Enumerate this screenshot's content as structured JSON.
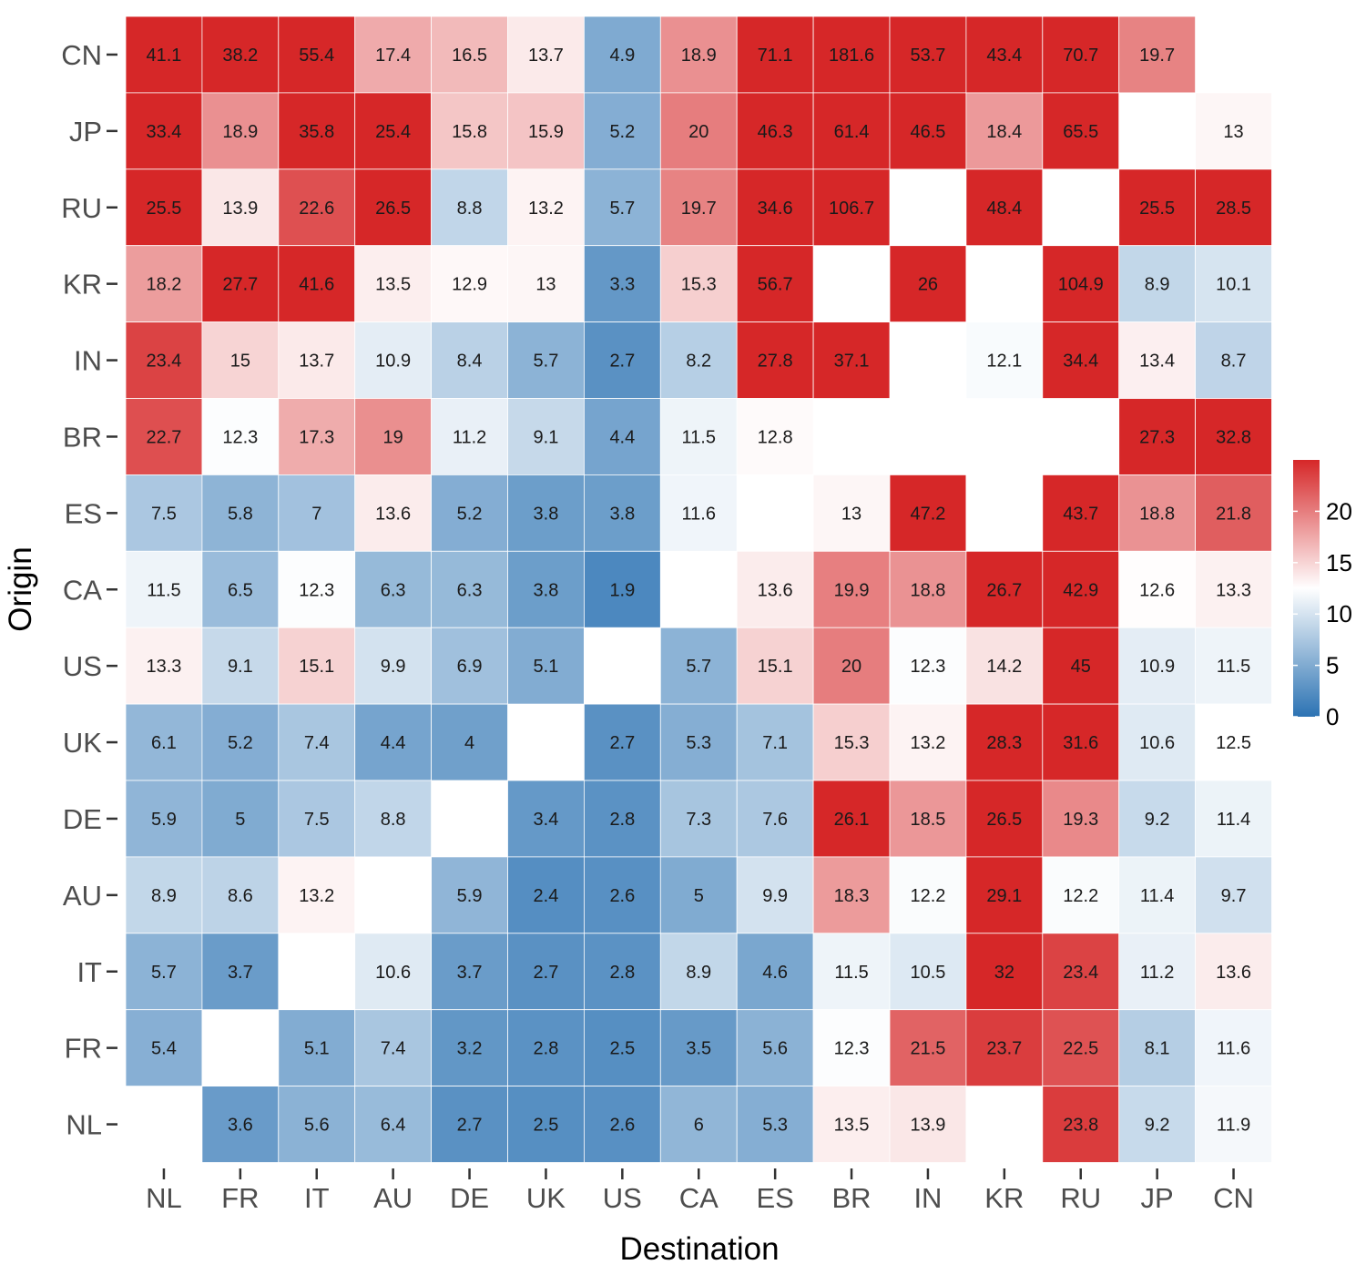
{
  "chart_data": {
    "type": "heatmap",
    "xlabel": "Destination",
    "ylabel": "Origin",
    "x_categories": [
      "NL",
      "FR",
      "IT",
      "AU",
      "DE",
      "UK",
      "US",
      "CA",
      "ES",
      "BR",
      "IN",
      "KR",
      "RU",
      "JP",
      "CN"
    ],
    "y_categories_top_to_bottom": [
      "CN",
      "JP",
      "RU",
      "KR",
      "IN",
      "BR",
      "ES",
      "CA",
      "US",
      "UK",
      "DE",
      "AU",
      "IT",
      "FR",
      "NL"
    ],
    "values": [
      [
        41.1,
        38.2,
        55.4,
        17.4,
        16.5,
        13.7,
        4.9,
        18.9,
        71.1,
        181.6,
        53.7,
        43.4,
        70.7,
        19.7,
        null
      ],
      [
        33.4,
        18.9,
        35.8,
        25.4,
        15.8,
        15.9,
        5.2,
        20,
        46.3,
        61.4,
        46.5,
        18.4,
        65.5,
        null,
        13
      ],
      [
        25.5,
        13.9,
        22.6,
        26.5,
        8.8,
        13.2,
        5.7,
        19.7,
        34.6,
        106.7,
        null,
        48.4,
        null,
        25.5,
        28.5
      ],
      [
        18.2,
        27.7,
        41.6,
        13.5,
        12.9,
        13,
        3.3,
        15.3,
        56.7,
        null,
        26,
        null,
        104.9,
        8.9,
        10.1
      ],
      [
        23.4,
        15,
        13.7,
        10.9,
        8.4,
        5.7,
        2.7,
        8.2,
        27.8,
        37.1,
        null,
        12.1,
        34.4,
        13.4,
        8.7
      ],
      [
        22.7,
        12.3,
        17.3,
        19,
        11.2,
        9.1,
        4.4,
        11.5,
        12.8,
        null,
        null,
        null,
        null,
        27.3,
        32.8
      ],
      [
        7.5,
        5.8,
        7,
        13.6,
        5.2,
        3.8,
        3.8,
        11.6,
        null,
        13,
        47.2,
        null,
        43.7,
        18.8,
        21.8
      ],
      [
        11.5,
        6.5,
        12.3,
        6.3,
        6.3,
        3.8,
        1.9,
        null,
        13.6,
        19.9,
        18.8,
        26.7,
        42.9,
        12.6,
        13.3
      ],
      [
        13.3,
        9.1,
        15.1,
        9.9,
        6.9,
        5.1,
        null,
        5.7,
        15.1,
        20,
        12.3,
        14.2,
        45,
        10.9,
        11.5
      ],
      [
        6.1,
        5.2,
        7.4,
        4.4,
        4,
        null,
        2.7,
        5.3,
        7.1,
        15.3,
        13.2,
        28.3,
        31.6,
        10.6,
        12.5
      ],
      [
        5.9,
        5,
        7.5,
        8.8,
        null,
        3.4,
        2.8,
        7.3,
        7.6,
        26.1,
        18.5,
        26.5,
        19.3,
        9.2,
        11.4
      ],
      [
        8.9,
        8.6,
        13.2,
        null,
        5.9,
        2.4,
        2.6,
        5,
        9.9,
        18.3,
        12.2,
        29.1,
        12.2,
        11.4,
        9.7
      ],
      [
        5.7,
        3.7,
        null,
        10.6,
        3.7,
        2.7,
        2.8,
        8.9,
        4.6,
        11.5,
        10.5,
        32,
        23.4,
        11.2,
        13.6
      ],
      [
        5.4,
        null,
        5.1,
        7.4,
        3.2,
        2.8,
        2.5,
        3.5,
        5.6,
        12.3,
        21.5,
        23.7,
        22.5,
        8.1,
        11.6
      ],
      [
        null,
        3.6,
        5.6,
        6.4,
        2.7,
        2.5,
        2.6,
        6,
        5.3,
        13.5,
        13.9,
        null,
        23.8,
        9.2,
        11.9
      ]
    ],
    "color_scale": {
      "type": "diverging",
      "low": "#2c73b3",
      "mid": "#ffffff",
      "high": "#d62728",
      "midpoint": 12.5,
      "limits": [
        0,
        25
      ],
      "breaks": [
        0,
        5,
        10,
        15,
        20
      ]
    },
    "legend_position": "right"
  }
}
